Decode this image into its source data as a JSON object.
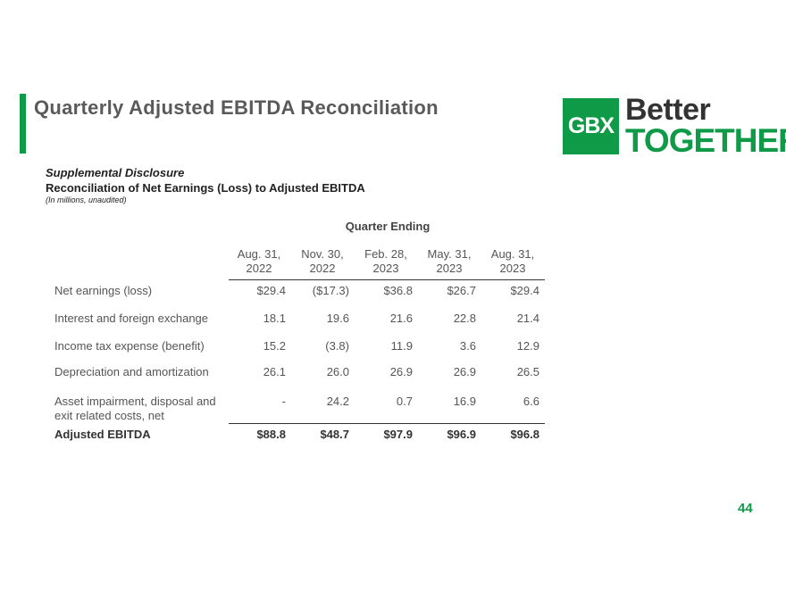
{
  "header": {
    "title": "Quarterly Adjusted EBITDA Reconciliation"
  },
  "logo": {
    "box_text": "GBX",
    "line1": "Better",
    "line2": "TOGETHER",
    "brand_color": "#0f9a48"
  },
  "subtitles": {
    "disclosure": "Supplemental Disclosure",
    "reconciliation": "Reconciliation of Net Earnings (Loss) to Adjusted EBITDA",
    "units": "(In millions, unaudited)"
  },
  "table": {
    "group_header": "Quarter Ending",
    "columns": [
      {
        "line1": "Aug. 31,",
        "line2": "2022"
      },
      {
        "line1": "Nov. 30,",
        "line2": "2022"
      },
      {
        "line1": "Feb. 28,",
        "line2": "2023"
      },
      {
        "line1": "May. 31,",
        "line2": "2023"
      },
      {
        "line1": "Aug. 31,",
        "line2": "2023"
      }
    ],
    "rows": [
      {
        "label": "Net earnings (loss)",
        "values": [
          "$29.4",
          "($17.3)",
          "$36.8",
          "$26.7",
          "$29.4"
        ]
      },
      {
        "label": "Interest and foreign exchange",
        "values": [
          "18.1",
          "19.6",
          "21.6",
          "22.8",
          "21.4"
        ]
      },
      {
        "label": "Income tax expense (benefit)",
        "values": [
          "15.2",
          "(3.8)",
          "11.9",
          "3.6",
          "12.9"
        ]
      },
      {
        "label": "Depreciation and amortization",
        "values": [
          "26.1",
          "26.0",
          "26.9",
          "26.9",
          "26.5"
        ]
      },
      {
        "label_line1": "Asset impairment, disposal and",
        "label_line2": "exit related costs, net",
        "values": [
          "-",
          "24.2",
          "0.7",
          "16.9",
          "6.6"
        ]
      }
    ],
    "total": {
      "label": "Adjusted EBITDA",
      "values": [
        "$88.8",
        "$48.7",
        "$97.9",
        "$96.9",
        "$96.8"
      ]
    }
  },
  "footer": {
    "page_number": "44"
  }
}
